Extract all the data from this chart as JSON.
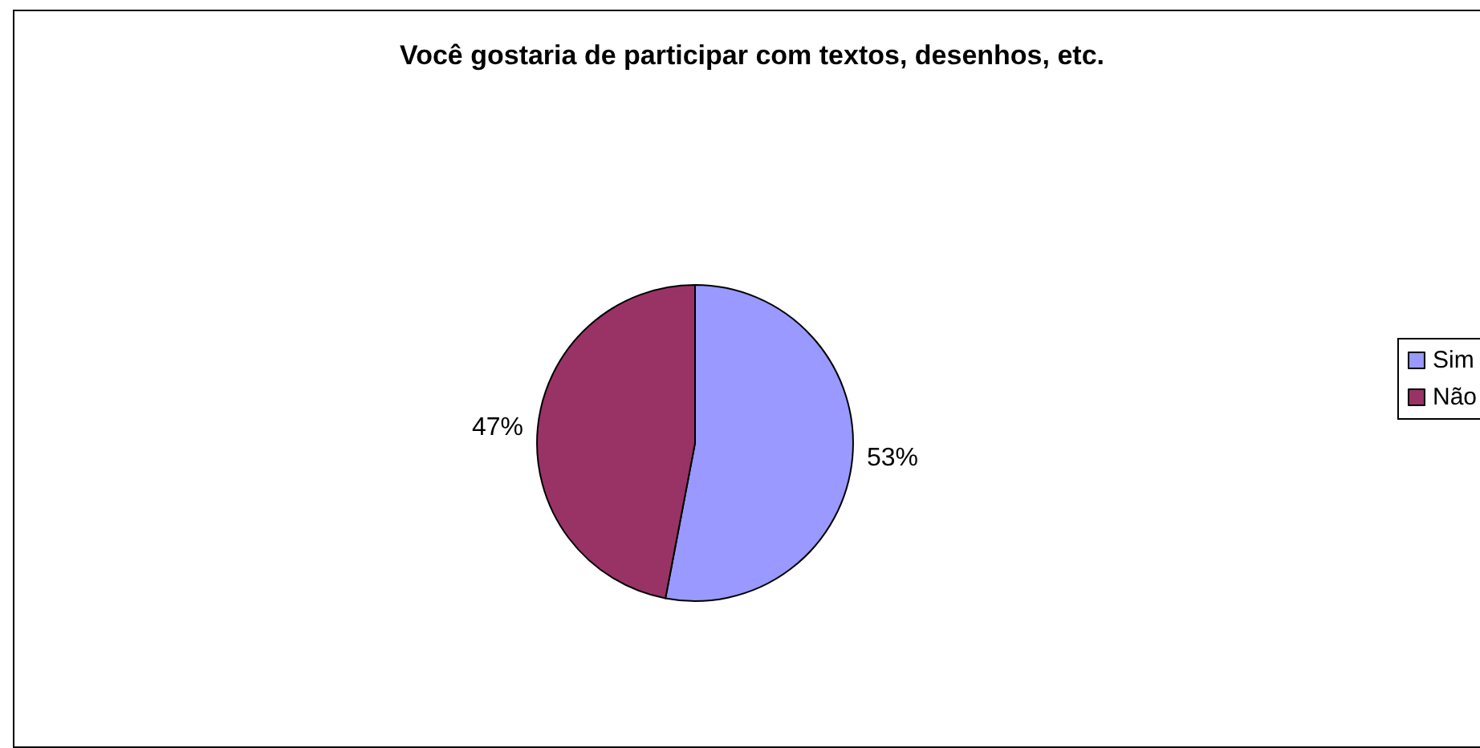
{
  "chart_data": {
    "type": "pie",
    "title": "Você gostaria de participar com textos, desenhos, etc.",
    "categories": [
      "Sim",
      "Não"
    ],
    "values": [
      53,
      47
    ],
    "colors": [
      "#9999ff",
      "#993366"
    ],
    "value_labels": [
      "53%",
      "47%"
    ],
    "legend": "right"
  }
}
